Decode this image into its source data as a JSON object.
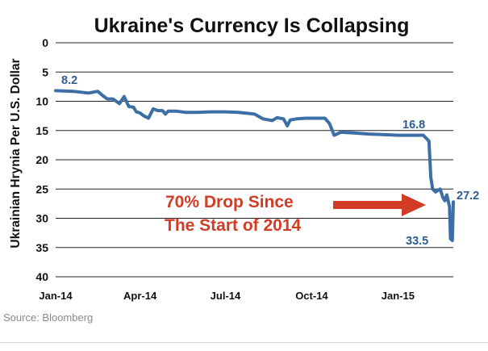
{
  "chart_data": {
    "type": "line",
    "title": "Ukraine's Currency Is Collapsing",
    "xlabel": "",
    "ylabel": "Ukrainian Hrynia Per U.S. Dollar",
    "x_tick_labels": [
      "Jan-14",
      "Apr-14",
      "Jul-14",
      "Oct-14",
      "Jan-15"
    ],
    "x_tick_dates": [
      "2014-01-01",
      "2014-04-01",
      "2014-07-01",
      "2014-10-01",
      "2015-01-01"
    ],
    "xlim": [
      "2014-01-01",
      "2015-03-01"
    ],
    "ylim": [
      0,
      40
    ],
    "y_inverted": true,
    "y_ticks": [
      0,
      5,
      10,
      15,
      20,
      25,
      30,
      35,
      40
    ],
    "grid": "horizontal",
    "line_color": "#3d6fa6",
    "series": [
      {
        "x": [
          "2014-01-01",
          "2014-01-20",
          "2014-02-05",
          "2014-02-15",
          "2014-02-20",
          "2014-02-25",
          "2014-03-03",
          "2014-03-10",
          "2014-03-15",
          "2014-03-20",
          "2014-03-25",
          "2014-03-28",
          "2014-04-01",
          "2014-04-05",
          "2014-04-10",
          "2014-04-15",
          "2014-04-20",
          "2014-04-25",
          "2014-04-28",
          "2014-05-01",
          "2014-05-10",
          "2014-05-20",
          "2014-06-01",
          "2014-06-15",
          "2014-07-01",
          "2014-07-15",
          "2014-08-01",
          "2014-08-10",
          "2014-08-20",
          "2014-08-25",
          "2014-09-01",
          "2014-09-05",
          "2014-09-08",
          "2014-09-15",
          "2014-09-25",
          "2014-10-01",
          "2014-10-15",
          "2014-10-20",
          "2014-10-25",
          "2014-11-01",
          "2014-11-15",
          "2014-12-01",
          "2014-12-15",
          "2015-01-01",
          "2015-01-15",
          "2015-01-28",
          "2015-02-03",
          "2015-02-05",
          "2015-02-07",
          "2015-02-10",
          "2015-02-15",
          "2015-02-18",
          "2015-02-20",
          "2015-02-22",
          "2015-02-25",
          "2015-02-26",
          "2015-02-28",
          "2015-03-01"
        ],
        "y": [
          8.2,
          8.3,
          8.6,
          8.3,
          9.0,
          9.6,
          9.6,
          10.4,
          9.2,
          10.9,
          11.0,
          11.8,
          12.0,
          12.5,
          12.9,
          11.3,
          11.6,
          11.6,
          12.2,
          11.7,
          11.7,
          11.9,
          11.9,
          11.8,
          11.8,
          11.9,
          12.2,
          13.0,
          13.3,
          12.8,
          13.0,
          14.2,
          13.2,
          13.0,
          12.9,
          12.9,
          12.9,
          13.8,
          15.8,
          15.3,
          15.4,
          15.6,
          15.7,
          15.8,
          15.8,
          15.8,
          16.8,
          23.0,
          25.0,
          25.5,
          25.0,
          26.5,
          27.0,
          26.0,
          28.0,
          33.5,
          33.8,
          27.2
        ]
      }
    ],
    "data_labels": [
      {
        "text": "8.2"
      },
      {
        "text": "16.8"
      },
      {
        "text": "27.2"
      },
      {
        "text": "33.5"
      }
    ],
    "annotation": {
      "line1": "70% Drop Since",
      "line2": "The Start of 2014",
      "color": "#d23b24"
    }
  },
  "source": "Source: Bloomberg"
}
